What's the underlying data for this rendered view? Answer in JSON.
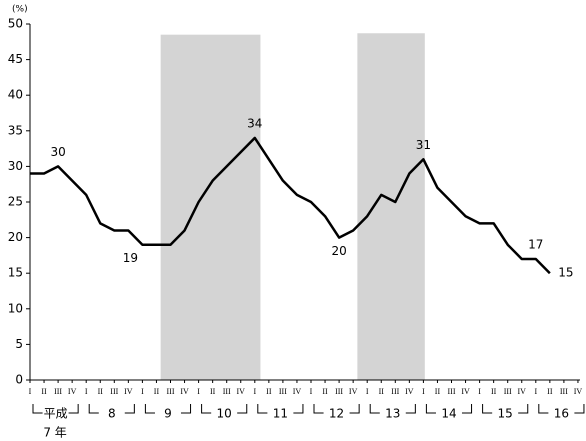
{
  "chart_data": {
    "type": "line",
    "y_unit": "(%)",
    "categories": [
      "I",
      "II",
      "III",
      "IV",
      "I",
      "II",
      "III",
      "IV",
      "I",
      "II",
      "III",
      "IV",
      "I",
      "II",
      "III",
      "IV",
      "I",
      "II",
      "III",
      "IV",
      "I",
      "II",
      "III",
      "IV",
      "I",
      "II",
      "III",
      "IV",
      "I",
      "II",
      "III",
      "IV",
      "I",
      "II",
      "III",
      "IV",
      "I",
      "II",
      "III",
      "IV"
    ],
    "year_groups": [
      "平成",
      "8",
      "9",
      "10",
      "11",
      "12",
      "13",
      "14",
      "15",
      "16"
    ],
    "first_year_label": "7 年",
    "series": [
      {
        "color": "#000000",
        "values": [
          29,
          29,
          30,
          28,
          26,
          22,
          21,
          21,
          19,
          19,
          19,
          21,
          25,
          28,
          30,
          32,
          34,
          31,
          28,
          26,
          25,
          23,
          20,
          21,
          23,
          26,
          25,
          29,
          31,
          27,
          25,
          23,
          22,
          22,
          19,
          17,
          17,
          15,
          null,
          null
        ]
      }
    ],
    "labeled_points": [
      2,
      8,
      16,
      22,
      28,
      36,
      37
    ],
    "shaded_periods": [
      {
        "from": 9.3,
        "to": 16.4,
        "top": 48.5,
        "color": "#d4d4d4"
      },
      {
        "from": 23.3,
        "to": 28.1,
        "top": 48.7,
        "color": "#d4d4d4"
      }
    ],
    "ylim": [
      0,
      50
    ],
    "yticks": [
      0,
      5,
      10,
      15,
      20,
      25,
      30,
      35,
      40,
      45,
      50
    ],
    "grid": false
  }
}
